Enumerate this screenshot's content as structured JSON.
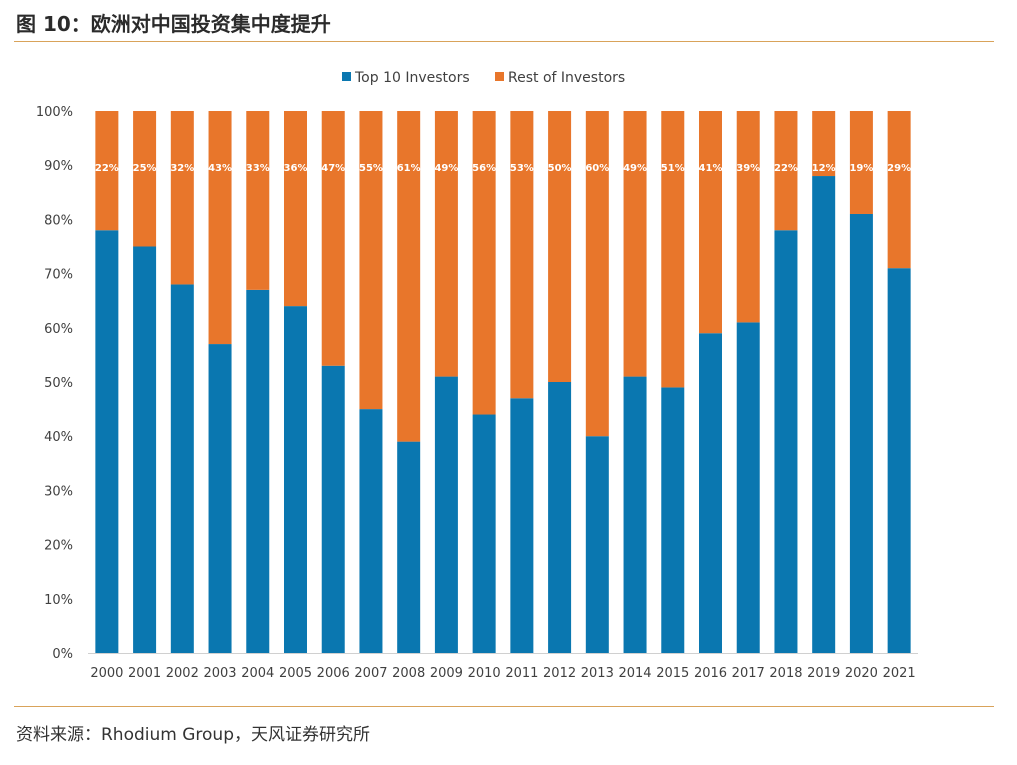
{
  "header": {
    "title": "图 10：欧洲对中国投资集中度提升"
  },
  "footer": {
    "source": "资料来源：Rhodium Group，天风证券研究所"
  },
  "colors": {
    "top10": "#0A77B0",
    "rest": "#E8762B",
    "rule": "#D9A35A"
  },
  "chart_data": {
    "type": "bar",
    "stacked": true,
    "title": "",
    "xlabel": "",
    "ylabel": "",
    "ylim": [
      0,
      100
    ],
    "yticks": [
      "0%",
      "10%",
      "20%",
      "30%",
      "40%",
      "50%",
      "60%",
      "70%",
      "80%",
      "90%",
      "100%"
    ],
    "legend_position": "top-center",
    "grid": false,
    "categories": [
      "2000",
      "2001",
      "2002",
      "2003",
      "2004",
      "2005",
      "2006",
      "2007",
      "2008",
      "2009",
      "2010",
      "2011",
      "2012",
      "2013",
      "2014",
      "2015",
      "2016",
      "2017",
      "2018",
      "2019",
      "2020",
      "2021"
    ],
    "series": [
      {
        "name": "Top 10 Investors",
        "values": [
          78,
          75,
          68,
          57,
          67,
          64,
          53,
          45,
          39,
          51,
          44,
          47,
          50,
          40,
          51,
          49,
          59,
          61,
          78,
          88,
          81,
          71
        ]
      },
      {
        "name": "Rest of Investors",
        "values": [
          22,
          25,
          32,
          43,
          33,
          36,
          47,
          55,
          61,
          49,
          56,
          53,
          50,
          60,
          49,
          51,
          41,
          39,
          22,
          12,
          19,
          29
        ],
        "labels": [
          "22%",
          "25%",
          "32%",
          "43%",
          "33%",
          "36%",
          "47%",
          "55%",
          "61%",
          "49%",
          "56%",
          "53%",
          "50%",
          "60%",
          "49%",
          "51%",
          "41%",
          "39%",
          "22%",
          "12%",
          "19%",
          "29%"
        ]
      }
    ]
  }
}
